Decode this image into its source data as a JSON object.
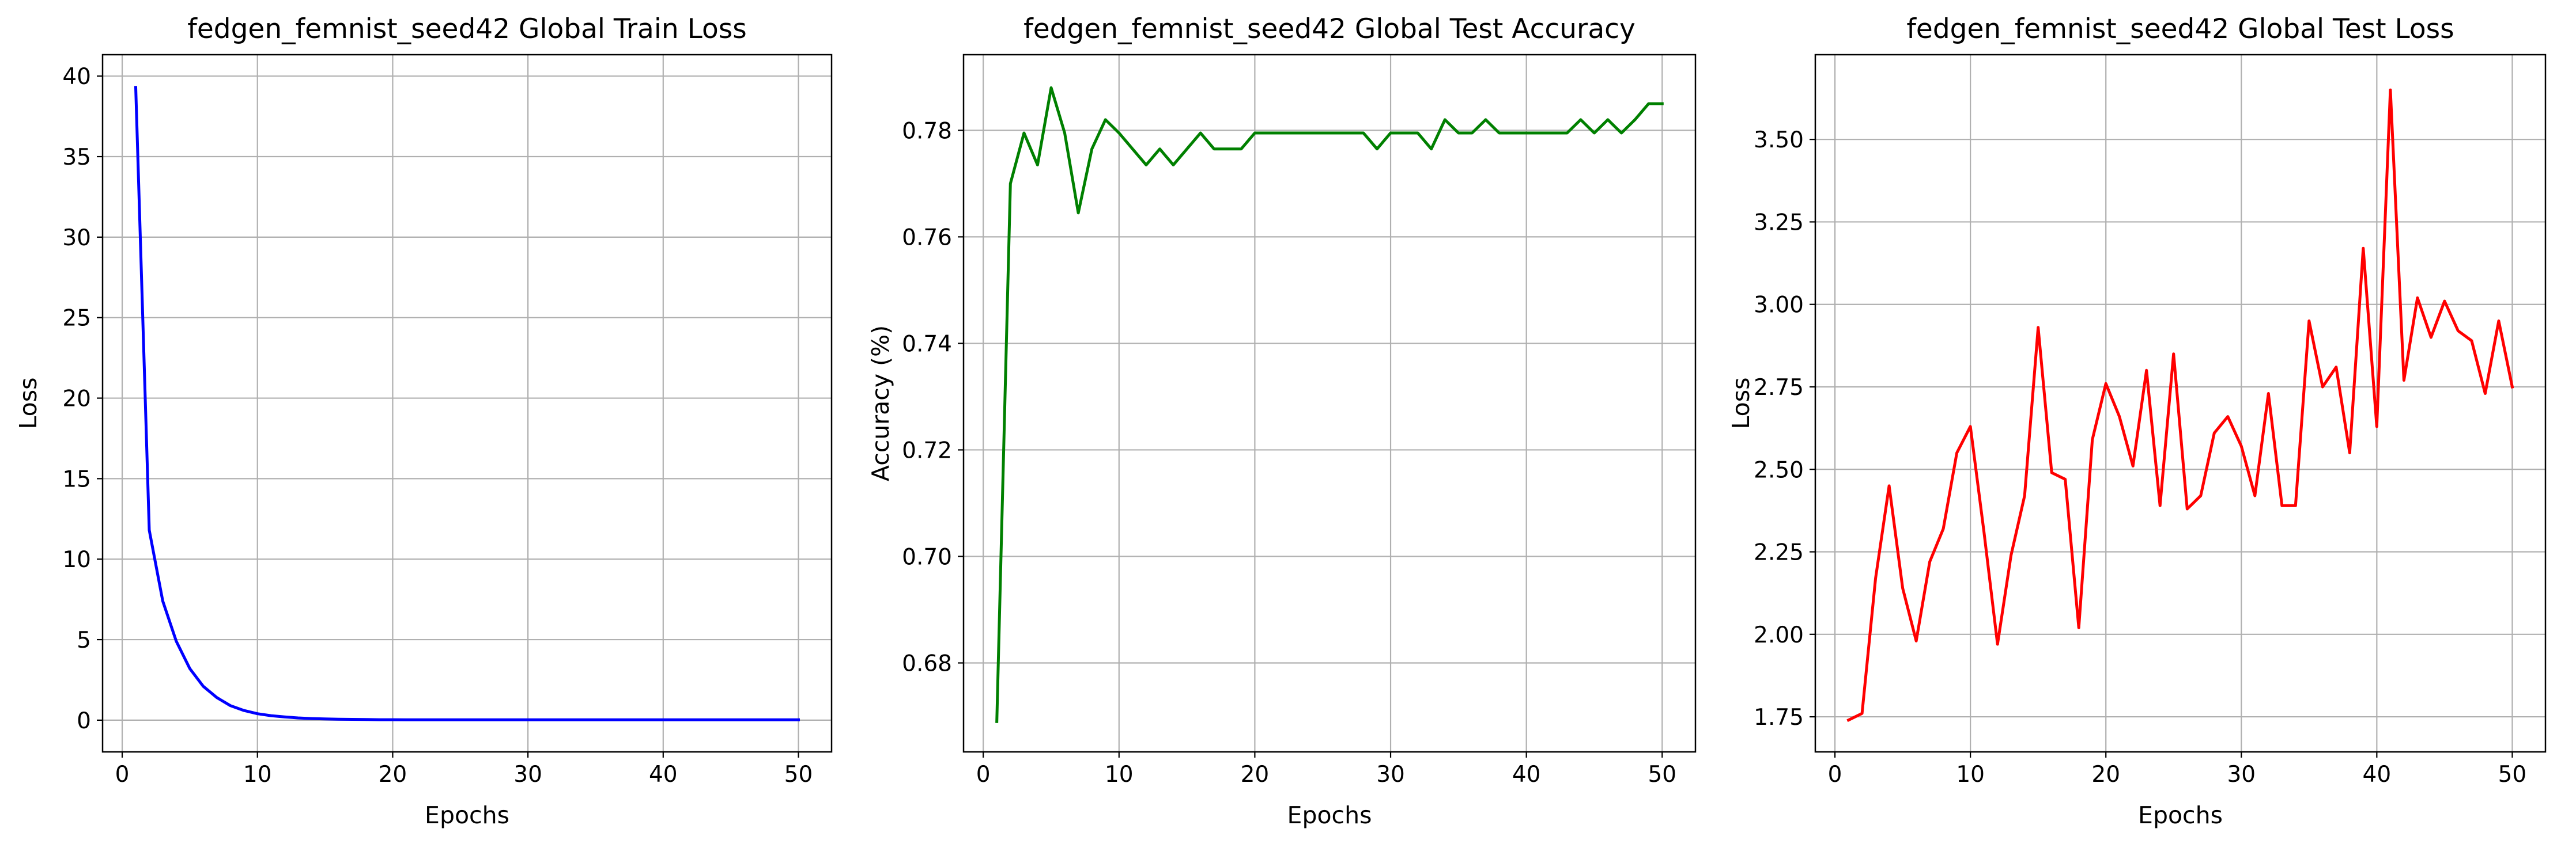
{
  "chart_data": [
    {
      "type": "line",
      "title": "fedgen_femnist_seed42 Global Train Loss",
      "xlabel": "Epochs",
      "ylabel": "Loss",
      "xlim": [
        -1.45,
        52.45
      ],
      "ylim": [
        -1.97,
        41.33
      ],
      "xticks": [
        0,
        10,
        20,
        30,
        40,
        50
      ],
      "yticks": [
        0,
        5,
        10,
        15,
        20,
        25,
        30,
        35,
        40
      ],
      "ytick_labels": [
        "0",
        "5",
        "10",
        "15",
        "20",
        "25",
        "30",
        "35",
        "40"
      ],
      "grid": true,
      "color": "#0000ff",
      "x": [
        1,
        2,
        3,
        4,
        5,
        6,
        7,
        8,
        9,
        10,
        11,
        12,
        13,
        14,
        15,
        16,
        17,
        18,
        19,
        20,
        21,
        22,
        23,
        24,
        25,
        26,
        27,
        28,
        29,
        30,
        31,
        32,
        33,
        34,
        35,
        36,
        37,
        38,
        39,
        40,
        41,
        42,
        43,
        44,
        45,
        46,
        47,
        48,
        49,
        50
      ],
      "y": [
        39.3,
        11.8,
        7.4,
        4.9,
        3.2,
        2.1,
        1.4,
        0.9,
        0.6,
        0.4,
        0.28,
        0.2,
        0.14,
        0.1,
        0.08,
        0.06,
        0.05,
        0.04,
        0.03,
        0.03,
        0.02,
        0.02,
        0.02,
        0.02,
        0.02,
        0.02,
        0.02,
        0.02,
        0.02,
        0.02,
        0.02,
        0.02,
        0.02,
        0.02,
        0.02,
        0.02,
        0.02,
        0.02,
        0.02,
        0.02,
        0.02,
        0.02,
        0.02,
        0.02,
        0.02,
        0.02,
        0.02,
        0.02,
        0.02,
        0.02
      ]
    },
    {
      "type": "line",
      "title": "fedgen_femnist_seed42 Global Test Accuracy",
      "xlabel": "Epochs",
      "ylabel": "Accuracy (%)",
      "xlim": [
        -1.45,
        52.45
      ],
      "ylim": [
        0.6633,
        0.7942
      ],
      "xticks": [
        0,
        10,
        20,
        30,
        40,
        50
      ],
      "yticks": [
        0.68,
        0.7,
        0.72,
        0.74,
        0.76,
        0.78
      ],
      "ytick_labels": [
        "0.68",
        "0.70",
        "0.72",
        "0.74",
        "0.76",
        "0.78"
      ],
      "grid": true,
      "color": "#008000",
      "x": [
        1,
        2,
        3,
        4,
        5,
        6,
        7,
        8,
        9,
        10,
        11,
        12,
        13,
        14,
        15,
        16,
        17,
        18,
        19,
        20,
        21,
        22,
        23,
        24,
        25,
        26,
        27,
        28,
        29,
        30,
        31,
        32,
        33,
        34,
        35,
        36,
        37,
        38,
        39,
        40,
        41,
        42,
        43,
        44,
        45,
        46,
        47,
        48,
        49,
        50
      ],
      "y": [
        0.669,
        0.77,
        0.7795,
        0.7735,
        0.788,
        0.7795,
        0.7645,
        0.7765,
        0.782,
        0.7795,
        0.7765,
        0.7735,
        0.7765,
        0.7735,
        0.7765,
        0.7795,
        0.7765,
        0.7765,
        0.7765,
        0.7795,
        0.7795,
        0.7795,
        0.7795,
        0.7795,
        0.7795,
        0.7795,
        0.7795,
        0.7795,
        0.7765,
        0.7795,
        0.7795,
        0.7795,
        0.7765,
        0.782,
        0.7795,
        0.7795,
        0.782,
        0.7795,
        0.7795,
        0.7795,
        0.7795,
        0.7795,
        0.7795,
        0.782,
        0.7795,
        0.782,
        0.7795,
        0.782,
        0.785,
        0.785
      ]
    },
    {
      "type": "line",
      "title": "fedgen_femnist_seed42 Global Test Loss",
      "xlabel": "Epochs",
      "ylabel": "Loss",
      "xlim": [
        -1.45,
        52.45
      ],
      "ylim": [
        1.6437,
        3.7568
      ],
      "xticks": [
        0,
        10,
        20,
        30,
        40,
        50
      ],
      "yticks": [
        1.75,
        2.0,
        2.25,
        2.5,
        2.75,
        3.0,
        3.25,
        3.5
      ],
      "ytick_labels": [
        "1.75",
        "2.00",
        "2.25",
        "2.50",
        "2.75",
        "3.00",
        "3.25",
        "3.50"
      ],
      "grid": true,
      "color": "#ff0000",
      "x": [
        1,
        2,
        3,
        4,
        5,
        6,
        7,
        8,
        9,
        10,
        11,
        12,
        13,
        14,
        15,
        16,
        17,
        18,
        19,
        20,
        21,
        22,
        23,
        24,
        25,
        26,
        27,
        28,
        29,
        30,
        31,
        32,
        33,
        34,
        35,
        36,
        37,
        38,
        39,
        40,
        41,
        42,
        43,
        44,
        45,
        46,
        47,
        48,
        49,
        50
      ],
      "y": [
        1.74,
        1.76,
        2.17,
        2.45,
        2.14,
        1.98,
        2.22,
        2.32,
        2.55,
        2.63,
        2.31,
        1.97,
        2.24,
        2.42,
        2.93,
        2.49,
        2.47,
        2.02,
        2.59,
        2.76,
        2.66,
        2.51,
        2.8,
        2.39,
        2.85,
        2.38,
        2.42,
        2.61,
        2.66,
        2.57,
        2.42,
        2.73,
        2.39,
        2.39,
        2.95,
        2.75,
        2.81,
        2.55,
        3.17,
        2.63,
        3.65,
        2.77,
        3.02,
        2.9,
        3.01,
        2.92,
        2.89,
        2.73,
        2.95,
        2.75
      ]
    }
  ]
}
